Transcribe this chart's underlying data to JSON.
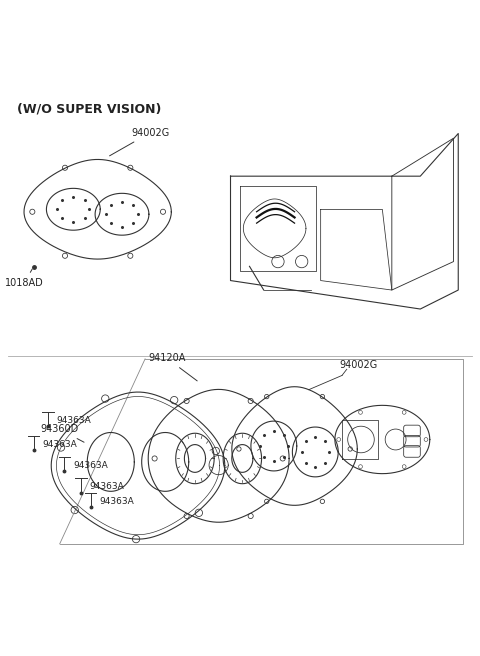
{
  "bg_color": "#ffffff",
  "line_color": "#333333",
  "text_color": "#222222",
  "fig_width": 4.8,
  "fig_height": 6.56,
  "dpi": 100,
  "labels": {
    "top_label": "(W/O SUPER VISION)",
    "upper_cluster_label": "94002G",
    "upper_screw_label": "1018AD",
    "lower_cluster_label": "94002G",
    "face_label": "94120A",
    "bezel_label": "94360D",
    "screw_labels": [
      "94363A",
      "94363A",
      "94363A",
      "94363A",
      "94363A"
    ]
  }
}
